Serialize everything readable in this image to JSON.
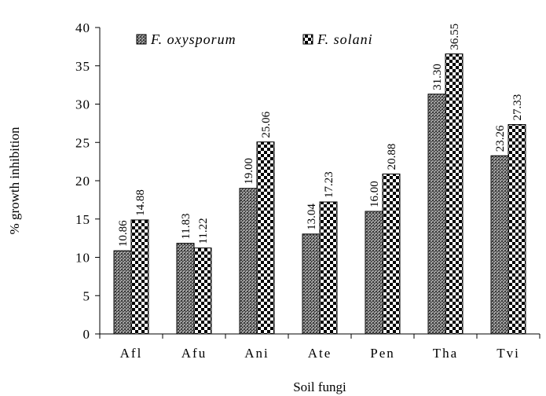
{
  "chart_data": {
    "type": "bar",
    "title": "",
    "xlabel": "Soil fungi",
    "ylabel": "% growth inhibition",
    "ylim": [
      0,
      40
    ],
    "yticks": [
      0,
      5,
      10,
      15,
      20,
      25,
      30,
      35,
      40
    ],
    "categories": [
      "Afl",
      "Afu",
      "Ani",
      "Ate",
      "Pen",
      "Tha",
      "Tvi"
    ],
    "series": [
      {
        "name": "F. oxysporum",
        "values": [
          10.86,
          11.83,
          19.0,
          13.04,
          16.0,
          31.3,
          23.26
        ],
        "labels": [
          "10.86",
          "11.83",
          "19.00",
          "13.04",
          "16.00",
          "31.30",
          "23.26"
        ]
      },
      {
        "name": "F. solani",
        "values": [
          14.88,
          11.22,
          25.06,
          17.23,
          20.88,
          36.55,
          27.33
        ],
        "labels": [
          "14.88",
          "11.22",
          "25.06",
          "17.23",
          "20.88",
          "36.55",
          "27.33"
        ]
      }
    ],
    "grid": false,
    "legend": "top"
  }
}
